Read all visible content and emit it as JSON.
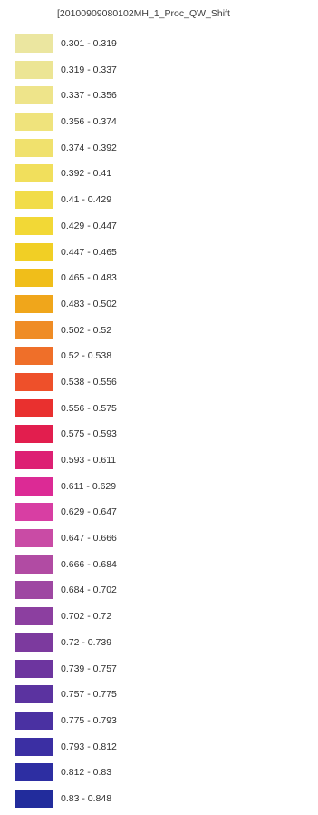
{
  "legend": {
    "title": "[20100909080102MH_1_Proc_QW_Shift",
    "items": [
      {
        "label": "0.301 - 0.319",
        "color": "#ebe6a0"
      },
      {
        "label": "0.319 - 0.337",
        "color": "#ece594"
      },
      {
        "label": "0.337 - 0.356",
        "color": "#eee48a"
      },
      {
        "label": "0.356 - 0.374",
        "color": "#efe37c"
      },
      {
        "label": "0.374 - 0.392",
        "color": "#f0e16d"
      },
      {
        "label": "0.392 - 0.41",
        "color": "#f1df5c"
      },
      {
        "label": "0.41 - 0.429",
        "color": "#f1dc48"
      },
      {
        "label": "0.429 - 0.447",
        "color": "#f2d836"
      },
      {
        "label": "0.447 - 0.465",
        "color": "#f1cf25"
      },
      {
        "label": "0.465 - 0.483",
        "color": "#f0be1a"
      },
      {
        "label": "0.483 - 0.502",
        "color": "#f0a61b"
      },
      {
        "label": "0.502 - 0.52",
        "color": "#ef8c25"
      },
      {
        "label": "0.52 - 0.538",
        "color": "#ef6f29"
      },
      {
        "label": "0.538 - 0.556",
        "color": "#ee502a"
      },
      {
        "label": "0.556 - 0.575",
        "color": "#e9302f"
      },
      {
        "label": "0.575 - 0.593",
        "color": "#e21e4e"
      },
      {
        "label": "0.593 - 0.611",
        "color": "#dd1f73"
      },
      {
        "label": "0.611 - 0.629",
        "color": "#dc2a95"
      },
      {
        "label": "0.629 - 0.647",
        "color": "#d83ea3"
      },
      {
        "label": "0.647 - 0.666",
        "color": "#c94ba5"
      },
      {
        "label": "0.666 - 0.684",
        "color": "#b14ba3"
      },
      {
        "label": "0.684 - 0.702",
        "color": "#9e47a2"
      },
      {
        "label": "0.702 - 0.72",
        "color": "#8c3fa0"
      },
      {
        "label": "0.72 - 0.739",
        "color": "#7c3a9e"
      },
      {
        "label": "0.739 - 0.757",
        "color": "#6d359f"
      },
      {
        "label": "0.757 - 0.775",
        "color": "#5b33a0"
      },
      {
        "label": "0.775 - 0.793",
        "color": "#4a31a2"
      },
      {
        "label": "0.793 - 0.812",
        "color": "#3b2fa3"
      },
      {
        "label": "0.812 - 0.83",
        "color": "#2d2ea2"
      },
      {
        "label": "0.83 - 0.848",
        "color": "#222c9c"
      }
    ]
  }
}
